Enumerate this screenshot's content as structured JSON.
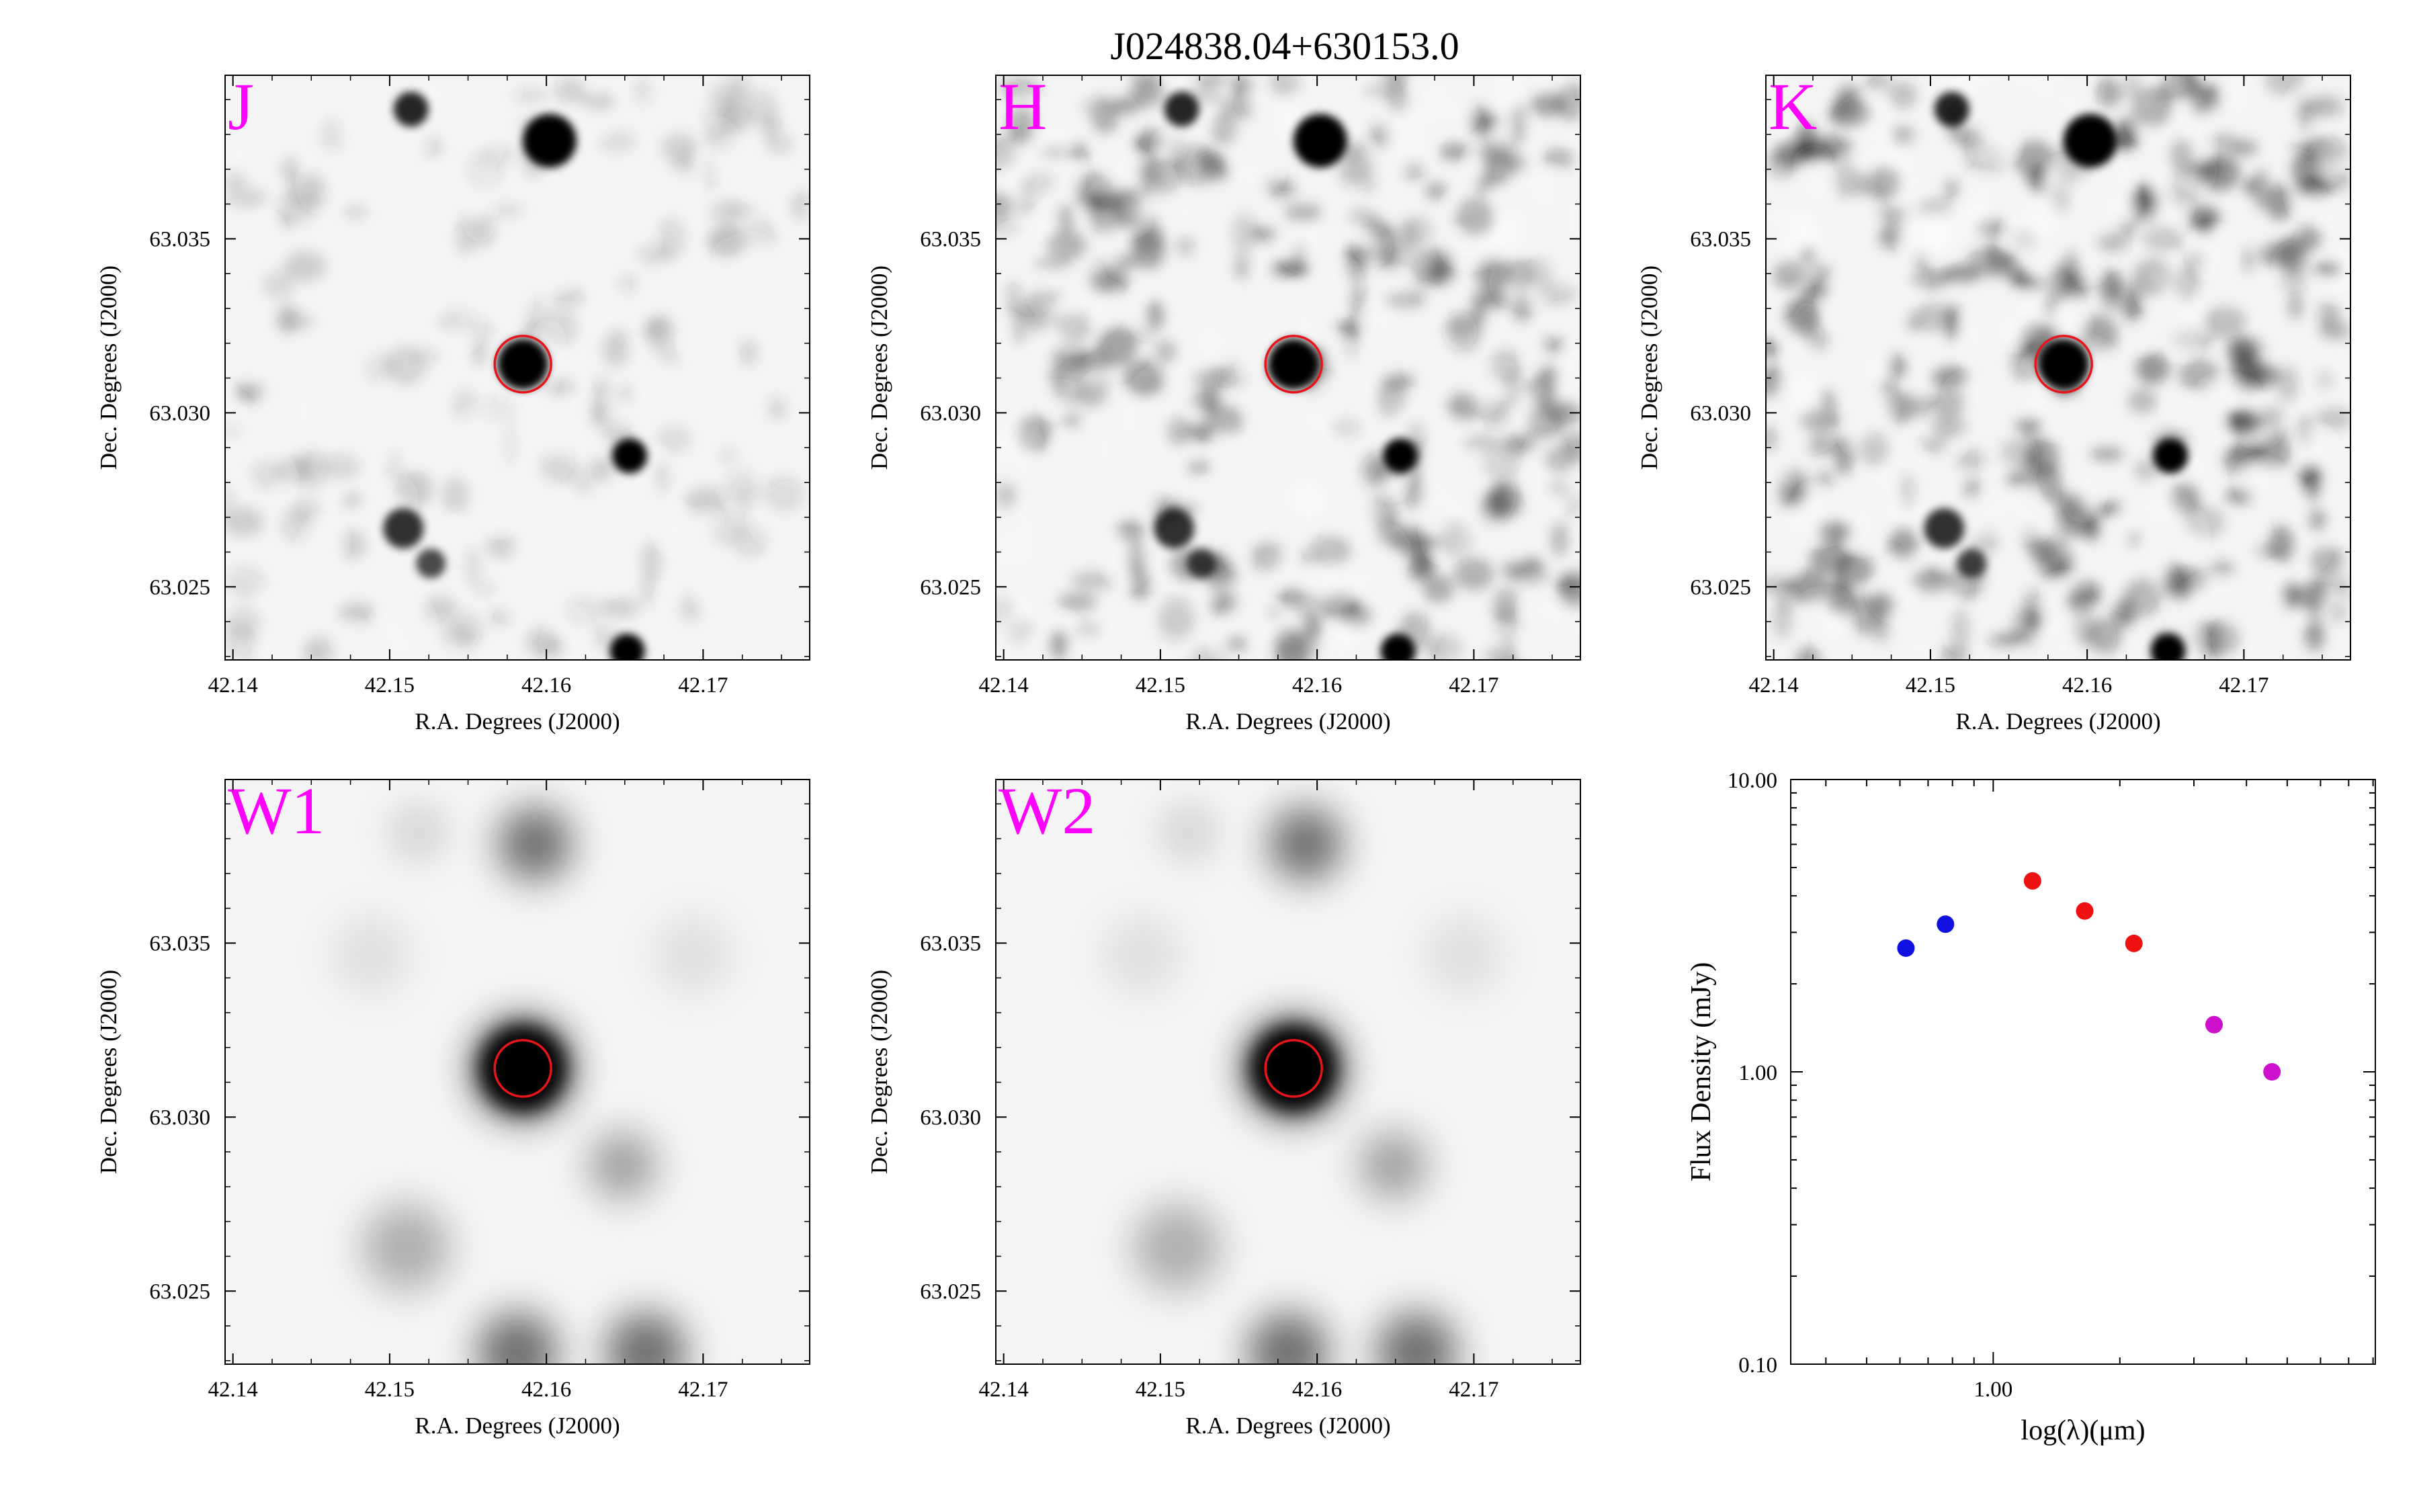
{
  "title": "J024838.04+630153.0",
  "colors": {
    "band_label": "#ff00ff",
    "aperture": "#e8141c",
    "optical": "#1010e0",
    "nir": "#ee1111",
    "mir": "#cc10cc"
  },
  "image_panels": [
    {
      "band": "J",
      "style": "nir-sharp",
      "xlabel": "R.A. Degrees (J2000)",
      "ylabel": "Dec. Degrees (J2000)"
    },
    {
      "band": "H",
      "style": "nir-noisy",
      "xlabel": "R.A. Degrees (J2000)",
      "ylabel": "Dec. Degrees (J2000)"
    },
    {
      "band": "K",
      "style": "nir-noisier",
      "xlabel": "R.A. Degrees (J2000)",
      "ylabel": "Dec. Degrees (J2000)"
    },
    {
      "band": "W1",
      "style": "wise-smooth",
      "xlabel": "R.A. Degrees (J2000)",
      "ylabel": "Dec. Degrees (J2000)"
    },
    {
      "band": "W2",
      "style": "wise-smooth",
      "xlabel": "R.A. Degrees (J2000)",
      "ylabel": "Dec. Degrees (J2000)"
    }
  ],
  "image_axes": {
    "ra_range": [
      42.1395,
      42.1768
    ],
    "dec_range": [
      63.0229,
      63.0397
    ],
    "ra_ticks": [
      "42.14",
      "42.15",
      "42.16",
      "42.17"
    ],
    "dec_ticks": [
      "63.025",
      "63.030",
      "63.035"
    ],
    "target": {
      "ra": 42.1585,
      "dec": 63.0314
    }
  },
  "chart_data": {
    "type": "scatter",
    "xlabel": "log(λ)(μm)",
    "ylabel": "Flux Density (mJy)",
    "x_scale": "log",
    "y_scale": "log",
    "xlim": [
      0.33,
      8.1
    ],
    "ylim": [
      0.1,
      10.0
    ],
    "xtick_labels": [
      "1.00"
    ],
    "ytick_labels": [
      "0.10",
      "1.00",
      "10.00"
    ],
    "series": [
      {
        "color": "#1010e0",
        "x": [
          0.62,
          0.77
        ],
        "y": [
          2.65,
          3.2
        ]
      },
      {
        "color": "#ee1111",
        "x": [
          1.24,
          1.65,
          2.16
        ],
        "y": [
          4.5,
          3.55,
          2.75
        ]
      },
      {
        "color": "#cc10cc",
        "x": [
          3.35,
          4.6
        ],
        "y": [
          1.45,
          1.0
        ]
      }
    ]
  }
}
